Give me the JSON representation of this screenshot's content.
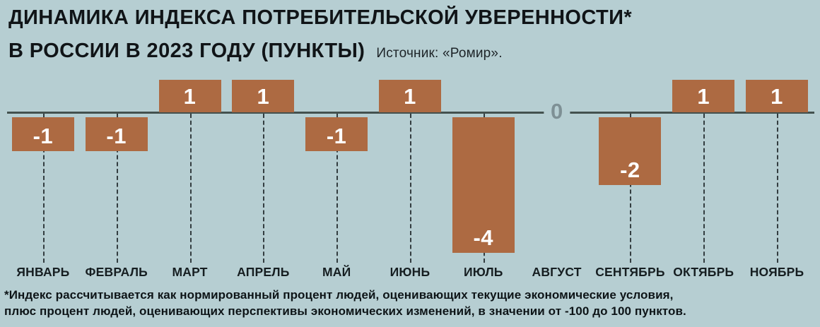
{
  "header": {
    "title_line1": "ДИНАМИКА ИНДЕКСА ПОТРЕБИТЕЛЬСКОЙ УВЕРЕННОСТИ*",
    "title_line2": "В РОССИИ В 2023 ГОДУ (ПУНКТЫ)",
    "source": "Источник: «Ромир»."
  },
  "chart_data": {
    "type": "bar",
    "title": "Динамика индекса потребительской уверенности в России в 2023 году (пункты)",
    "categories": [
      "ЯНВАРЬ",
      "ФЕВРАЛЬ",
      "МАРТ",
      "АПРЕЛЬ",
      "МАЙ",
      "ИЮНЬ",
      "ИЮЛЬ",
      "АВГУСТ",
      "СЕНТЯБРЬ",
      "ОКТЯБРЬ",
      "НОЯБРЬ"
    ],
    "values": [
      -1,
      -1,
      1,
      1,
      -1,
      1,
      -4,
      0,
      -2,
      1,
      1
    ],
    "value_labels": [
      "-1",
      "-1",
      "1",
      "1",
      "-1",
      "1",
      "-4",
      "0",
      "-2",
      "1",
      "1"
    ],
    "ylim": [
      -4,
      1
    ],
    "zero_label": "0",
    "bar_color": "#ad6a42",
    "background_color": "#b6ced2",
    "legend_position": "none",
    "grid": "dashed-vertical-leaders",
    "xlabel": "",
    "ylabel": "пункты"
  },
  "footnote": {
    "line1": "*Индекс рассчитывается как нормированный процент людей, оценивающих текущие экономические условия,",
    "line2": "плюс процент людей, оценивающих перспективы экономических изменений, в значении от -100 до 100 пунктов."
  }
}
